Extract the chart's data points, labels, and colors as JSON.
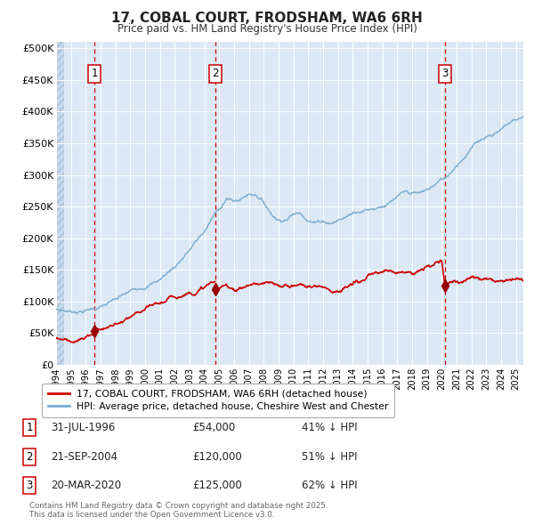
{
  "title": "17, COBAL COURT, FRODSHAM, WA6 6RH",
  "subtitle": "Price paid vs. HM Land Registry's House Price Index (HPI)",
  "plot_bg_color": "#dce9f5",
  "grid_color": "#ffffff",
  "red_line_color": "#cc0000",
  "blue_line_color": "#7aadcf",
  "transactions": [
    {
      "num": 1,
      "date_str": "31-JUL-1996",
      "price": 54000,
      "pct": "41% ↓ HPI",
      "x_year": 1996.58
    },
    {
      "num": 2,
      "date_str": "21-SEP-2004",
      "price": 120000,
      "pct": "51% ↓ HPI",
      "x_year": 2004.72
    },
    {
      "num": 3,
      "date_str": "20-MAR-2020",
      "price": 125000,
      "pct": "62% ↓ HPI",
      "x_year": 2020.22
    }
  ],
  "legend_label_red": "17, COBAL COURT, FRODSHAM, WA6 6RH (detached house)",
  "legend_label_blue": "HPI: Average price, detached house, Cheshire West and Chester",
  "footer_line1": "Contains HM Land Registry data © Crown copyright and database right 2025.",
  "footer_line2": "This data is licensed under the Open Government Licence v3.0.",
  "ylim": [
    0,
    510000
  ],
  "xlim_start": 1994.0,
  "xlim_end": 2025.5,
  "yticks": [
    0,
    50000,
    100000,
    150000,
    200000,
    250000,
    300000,
    350000,
    400000,
    450000,
    500000
  ],
  "ytick_labels": [
    "£0",
    "£50K",
    "£100K",
    "£150K",
    "£200K",
    "£250K",
    "£300K",
    "£350K",
    "£400K",
    "£450K",
    "£500K"
  ],
  "hpi_keypoints": [
    [
      1994.0,
      88000
    ],
    [
      1995.0,
      86000
    ],
    [
      1996.0,
      90000
    ],
    [
      1997.0,
      97000
    ],
    [
      1998.0,
      105000
    ],
    [
      1999.0,
      115000
    ],
    [
      2000.0,
      128000
    ],
    [
      2001.0,
      140000
    ],
    [
      2002.0,
      162000
    ],
    [
      2003.0,
      190000
    ],
    [
      2004.0,
      218000
    ],
    [
      2004.72,
      245000
    ],
    [
      2005.0,
      252000
    ],
    [
      2005.5,
      272000
    ],
    [
      2006.0,
      265000
    ],
    [
      2006.5,
      270000
    ],
    [
      2007.0,
      278000
    ],
    [
      2007.5,
      280000
    ],
    [
      2008.0,
      268000
    ],
    [
      2008.5,
      252000
    ],
    [
      2009.0,
      243000
    ],
    [
      2009.5,
      248000
    ],
    [
      2010.0,
      256000
    ],
    [
      2010.5,
      258000
    ],
    [
      2011.0,
      252000
    ],
    [
      2011.5,
      248000
    ],
    [
      2012.0,
      252000
    ],
    [
      2012.5,
      250000
    ],
    [
      2013.0,
      255000
    ],
    [
      2013.5,
      260000
    ],
    [
      2014.0,
      268000
    ],
    [
      2014.5,
      275000
    ],
    [
      2015.0,
      278000
    ],
    [
      2015.5,
      282000
    ],
    [
      2016.0,
      288000
    ],
    [
      2016.5,
      292000
    ],
    [
      2017.0,
      298000
    ],
    [
      2017.5,
      302000
    ],
    [
      2018.0,
      300000
    ],
    [
      2018.5,
      298000
    ],
    [
      2019.0,
      302000
    ],
    [
      2019.5,
      310000
    ],
    [
      2020.0,
      318000
    ],
    [
      2020.22,
      320000
    ],
    [
      2020.5,
      328000
    ],
    [
      2021.0,
      345000
    ],
    [
      2021.5,
      360000
    ],
    [
      2022.0,
      375000
    ],
    [
      2022.5,
      385000
    ],
    [
      2023.0,
      395000
    ],
    [
      2023.5,
      400000
    ],
    [
      2024.0,
      408000
    ],
    [
      2024.5,
      418000
    ],
    [
      2025.0,
      425000
    ],
    [
      2025.5,
      430000
    ]
  ],
  "red_keypoints_pre1": [
    [
      1994.0,
      43000
    ],
    [
      1995.0,
      41500
    ],
    [
      1996.0,
      43000
    ],
    [
      1996.58,
      54000
    ]
  ],
  "red_keypoints_12": [
    [
      1996.58,
      54000
    ],
    [
      1997.0,
      56000
    ],
    [
      1998.0,
      62000
    ],
    [
      1999.0,
      68000
    ],
    [
      2000.0,
      74000
    ],
    [
      2001.0,
      80000
    ],
    [
      2002.0,
      88000
    ],
    [
      2003.0,
      100000
    ],
    [
      2004.0,
      112000
    ],
    [
      2004.72,
      120000
    ]
  ],
  "red_keypoints_23": [
    [
      2004.72,
      120000
    ],
    [
      2005.0,
      118000
    ],
    [
      2005.5,
      122000
    ],
    [
      2006.0,
      120000
    ],
    [
      2006.5,
      122000
    ],
    [
      2007.0,
      128000
    ],
    [
      2007.5,
      130000
    ],
    [
      2008.0,
      128000
    ],
    [
      2008.5,
      125000
    ],
    [
      2009.0,
      118000
    ],
    [
      2009.5,
      120000
    ],
    [
      2010.0,
      122000
    ],
    [
      2010.5,
      124000
    ],
    [
      2011.0,
      122000
    ],
    [
      2011.5,
      120000
    ],
    [
      2012.0,
      122000
    ],
    [
      2012.5,
      120000
    ],
    [
      2013.0,
      122000
    ],
    [
      2013.5,
      125000
    ],
    [
      2014.0,
      128000
    ],
    [
      2014.5,
      132000
    ],
    [
      2015.0,
      135000
    ],
    [
      2015.5,
      138000
    ],
    [
      2016.0,
      140000
    ],
    [
      2016.5,
      142000
    ],
    [
      2017.0,
      145000
    ],
    [
      2017.5,
      148000
    ],
    [
      2018.0,
      148000
    ],
    [
      2018.5,
      150000
    ],
    [
      2019.0,
      155000
    ],
    [
      2019.5,
      158000
    ],
    [
      2020.0,
      162000
    ],
    [
      2020.22,
      125000
    ]
  ],
  "red_keypoints_post3": [
    [
      2020.22,
      125000
    ],
    [
      2020.5,
      130000
    ],
    [
      2021.0,
      138000
    ],
    [
      2021.5,
      140000
    ],
    [
      2022.0,
      142000
    ],
    [
      2022.5,
      145000
    ],
    [
      2023.0,
      148000
    ],
    [
      2023.5,
      150000
    ],
    [
      2024.0,
      152000
    ],
    [
      2024.5,
      155000
    ],
    [
      2025.0,
      158000
    ],
    [
      2025.5,
      160000
    ]
  ]
}
